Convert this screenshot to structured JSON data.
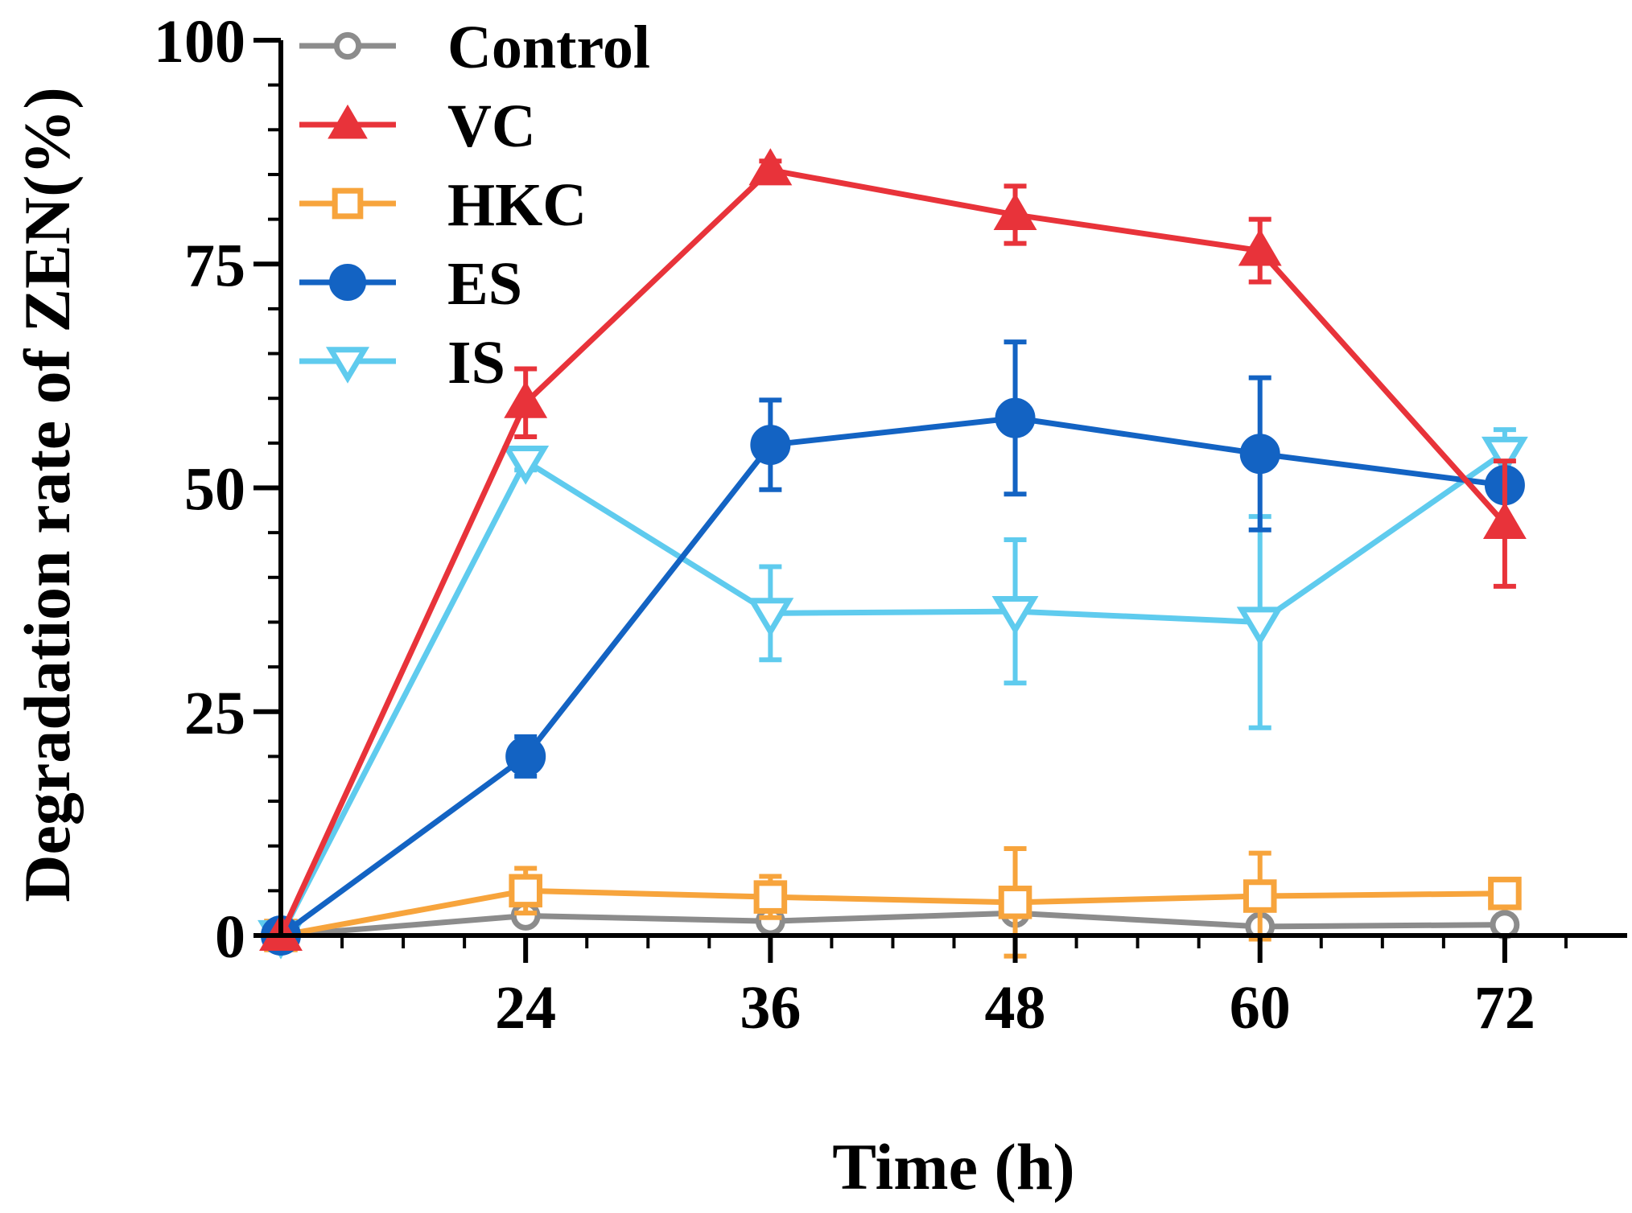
{
  "chart_data": {
    "type": "line",
    "title": "",
    "xlabel": "Time (h)",
    "ylabel": "Degradation rate of ZEN(%)",
    "xlim": [
      12,
      78
    ],
    "ylim": [
      0,
      100
    ],
    "xticks": [
      24,
      36,
      48,
      60,
      72
    ],
    "yticks": [
      0,
      25,
      50,
      75,
      100
    ],
    "x": [
      12,
      24,
      36,
      48,
      60,
      72
    ],
    "legend_position": "top-left",
    "series": [
      {
        "name": "Control",
        "color": "#8c8c8c",
        "marker": "circle-open",
        "values": [
          0,
          2.2,
          1.6,
          2.5,
          1.0,
          1.2
        ],
        "errors": [
          0,
          0.6,
          0.5,
          0.6,
          0.4,
          0.4
        ]
      },
      {
        "name": "VC",
        "color": "#e8333a",
        "marker": "triangle-up",
        "values": [
          0,
          59.5,
          85.5,
          80.5,
          76.5,
          46.0
        ],
        "errors": [
          0,
          3.8,
          1.0,
          3.2,
          3.5,
          7.0
        ]
      },
      {
        "name": "HKC",
        "color": "#f7a43c",
        "marker": "square-open",
        "values": [
          0,
          5.0,
          4.3,
          3.7,
          4.4,
          4.7
        ],
        "errors": [
          0,
          2.5,
          2.3,
          6.0,
          4.8,
          1.2
        ]
      },
      {
        "name": "ES",
        "color": "#1363c3",
        "marker": "circle",
        "values": [
          0,
          20.0,
          54.8,
          57.8,
          53.8,
          50.3
        ],
        "errors": [
          0,
          2.2,
          5.0,
          8.5,
          8.5,
          1.0
        ]
      },
      {
        "name": "IS",
        "color": "#5fcbee",
        "marker": "triangle-down",
        "values": [
          0,
          53.0,
          36.0,
          36.2,
          35.0,
          54.0
        ],
        "errors": [
          0,
          1.0,
          5.2,
          8.0,
          11.8,
          2.5
        ]
      }
    ]
  }
}
